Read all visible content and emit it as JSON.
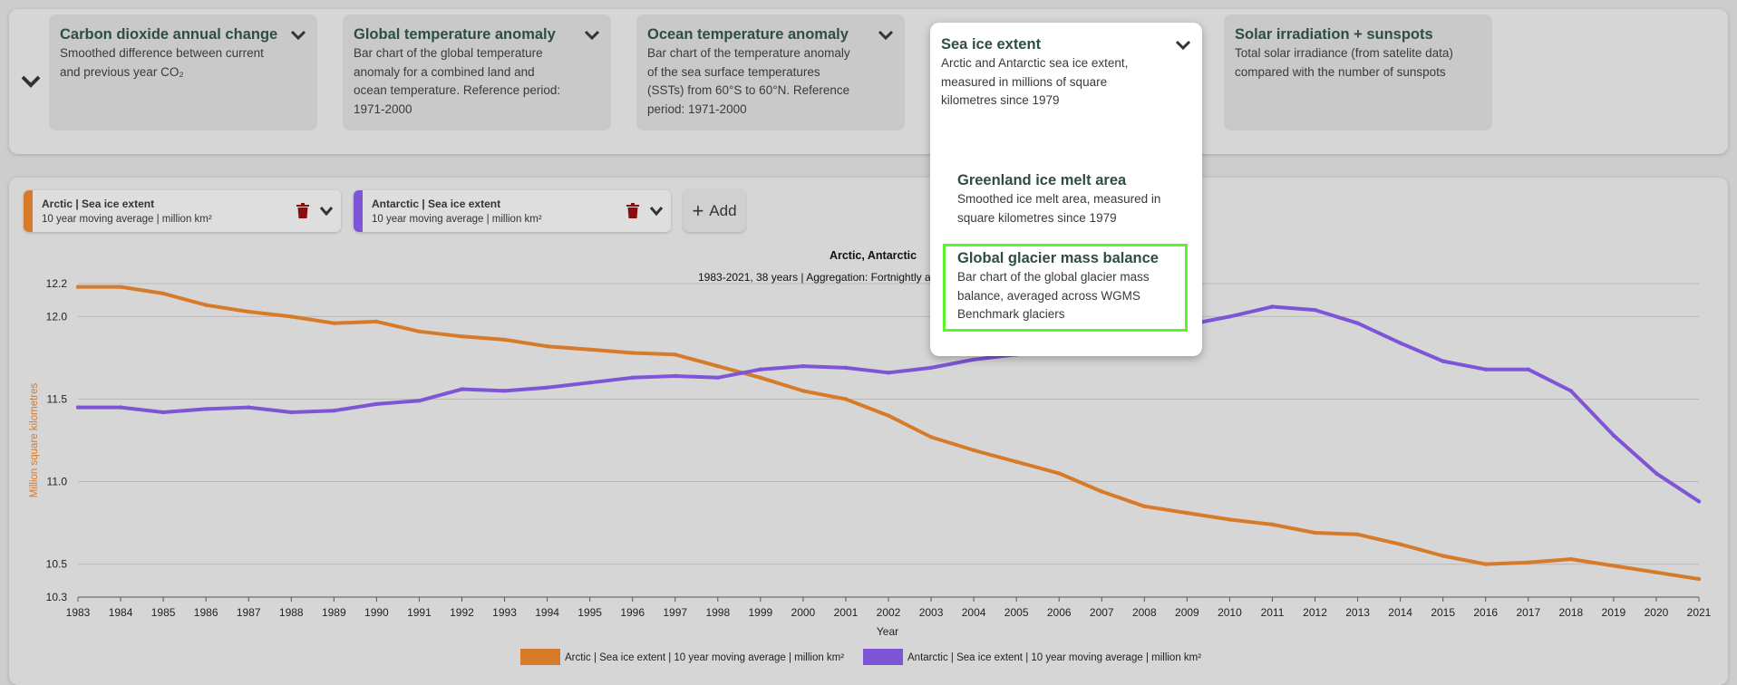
{
  "cards": [
    {
      "title": "Carbon dioxide annual change",
      "desc_lines": [
        "Smoothed difference between current",
        "and previous year CO₂"
      ]
    },
    {
      "title": "Global temperature anomaly",
      "desc_lines": [
        "Bar chart of the global temperature",
        "anomaly for a combined land and",
        "ocean temperature. Reference period:",
        "1971-2000"
      ]
    },
    {
      "title": "Ocean temperature anomaly",
      "desc_lines": [
        "Bar chart of the temperature anomaly",
        "of the sea surface temperatures",
        "(SSTs) from 60°S to 60°N. Reference",
        "period: 1971-2000"
      ]
    },
    {
      "title": "Solar irradiation + sunspots",
      "desc_lines": [
        "Total solar irradiance (from satelite data)",
        "compared with the number of sunspots"
      ]
    }
  ],
  "dropdown": {
    "title": "Sea ice extent",
    "desc_lines": [
      "Arctic and Antarctic sea ice extent,",
      "measured in millions of square",
      "kilometres since 1979"
    ],
    "items": [
      {
        "title": "Greenland ice melt area",
        "desc_lines": [
          "Smoothed ice melt area, measured in",
          "square kilometres since 1979"
        ]
      },
      {
        "title": "Global glacier mass balance",
        "desc_lines": [
          "Bar chart of the global glacier mass",
          "balance, averaged across WGMS",
          "Benchmark glaciers"
        ]
      }
    ]
  },
  "series_tabs": [
    {
      "title": "Arctic | Sea ice extent",
      "subtitle": "10 year moving average | million km²",
      "color": "#d57b2a"
    },
    {
      "title": "Antarctic | Sea ice extent",
      "subtitle": "10 year moving average | million km²",
      "color": "#7e55d6"
    }
  ],
  "add_button": {
    "label": "Add"
  },
  "colors": {
    "arctic": "#d57b2a",
    "antarctic": "#7e55d6",
    "highlight": "#5cf22c"
  },
  "chart_data": {
    "type": "line",
    "title": "Arctic, Antarctic",
    "subtitle": "1983-2021, 38 years | Aggregation: Fortnightly a",
    "xlabel": "Year",
    "ylabel": "Million square kilometres",
    "ylim": [
      10.3,
      12.2
    ],
    "yticks": [
      10.3,
      10.5,
      11.0,
      11.5,
      12.0,
      12.2
    ],
    "ytick_labels": [
      "10.3",
      "10.5",
      "11.0",
      "11.5",
      "12.0",
      "12.2"
    ],
    "x": [
      1983,
      1984,
      1985,
      1986,
      1987,
      1988,
      1989,
      1990,
      1991,
      1992,
      1993,
      1994,
      1995,
      1996,
      1997,
      1998,
      1999,
      2000,
      2001,
      2002,
      2003,
      2004,
      2005,
      2006,
      2007,
      2008,
      2009,
      2010,
      2011,
      2012,
      2013,
      2014,
      2015,
      2016,
      2017,
      2018,
      2019,
      2020,
      2021
    ],
    "grid": true,
    "legend": "bottom",
    "series": [
      {
        "name": "Arctic | Sea ice extent | 10 year moving average | million km²",
        "values": [
          12.18,
          12.18,
          12.14,
          12.07,
          12.03,
          12.0,
          11.96,
          11.97,
          11.91,
          11.88,
          11.86,
          11.82,
          11.8,
          11.78,
          11.77,
          11.7,
          11.63,
          11.55,
          11.5,
          11.4,
          11.27,
          11.19,
          11.12,
          11.05,
          10.94,
          10.85,
          10.81,
          10.77,
          10.74,
          10.69,
          10.68,
          10.62,
          10.55,
          10.5,
          10.51,
          10.53,
          10.49,
          10.45,
          10.41
        ]
      },
      {
        "name": "Antarctic | Sea ice extent | 10 year moving average | million km²",
        "values": [
          11.45,
          11.45,
          11.42,
          11.44,
          11.45,
          11.42,
          11.43,
          11.47,
          11.49,
          11.56,
          11.55,
          11.57,
          11.6,
          11.63,
          11.64,
          11.63,
          11.68,
          11.7,
          11.69,
          11.66,
          11.69,
          11.74,
          11.77,
          11.8,
          11.79,
          11.88,
          11.95,
          12.0,
          12.06,
          12.04,
          11.96,
          11.84,
          11.73,
          11.68,
          11.68,
          11.55,
          11.28,
          11.05,
          10.88
        ]
      }
    ]
  }
}
